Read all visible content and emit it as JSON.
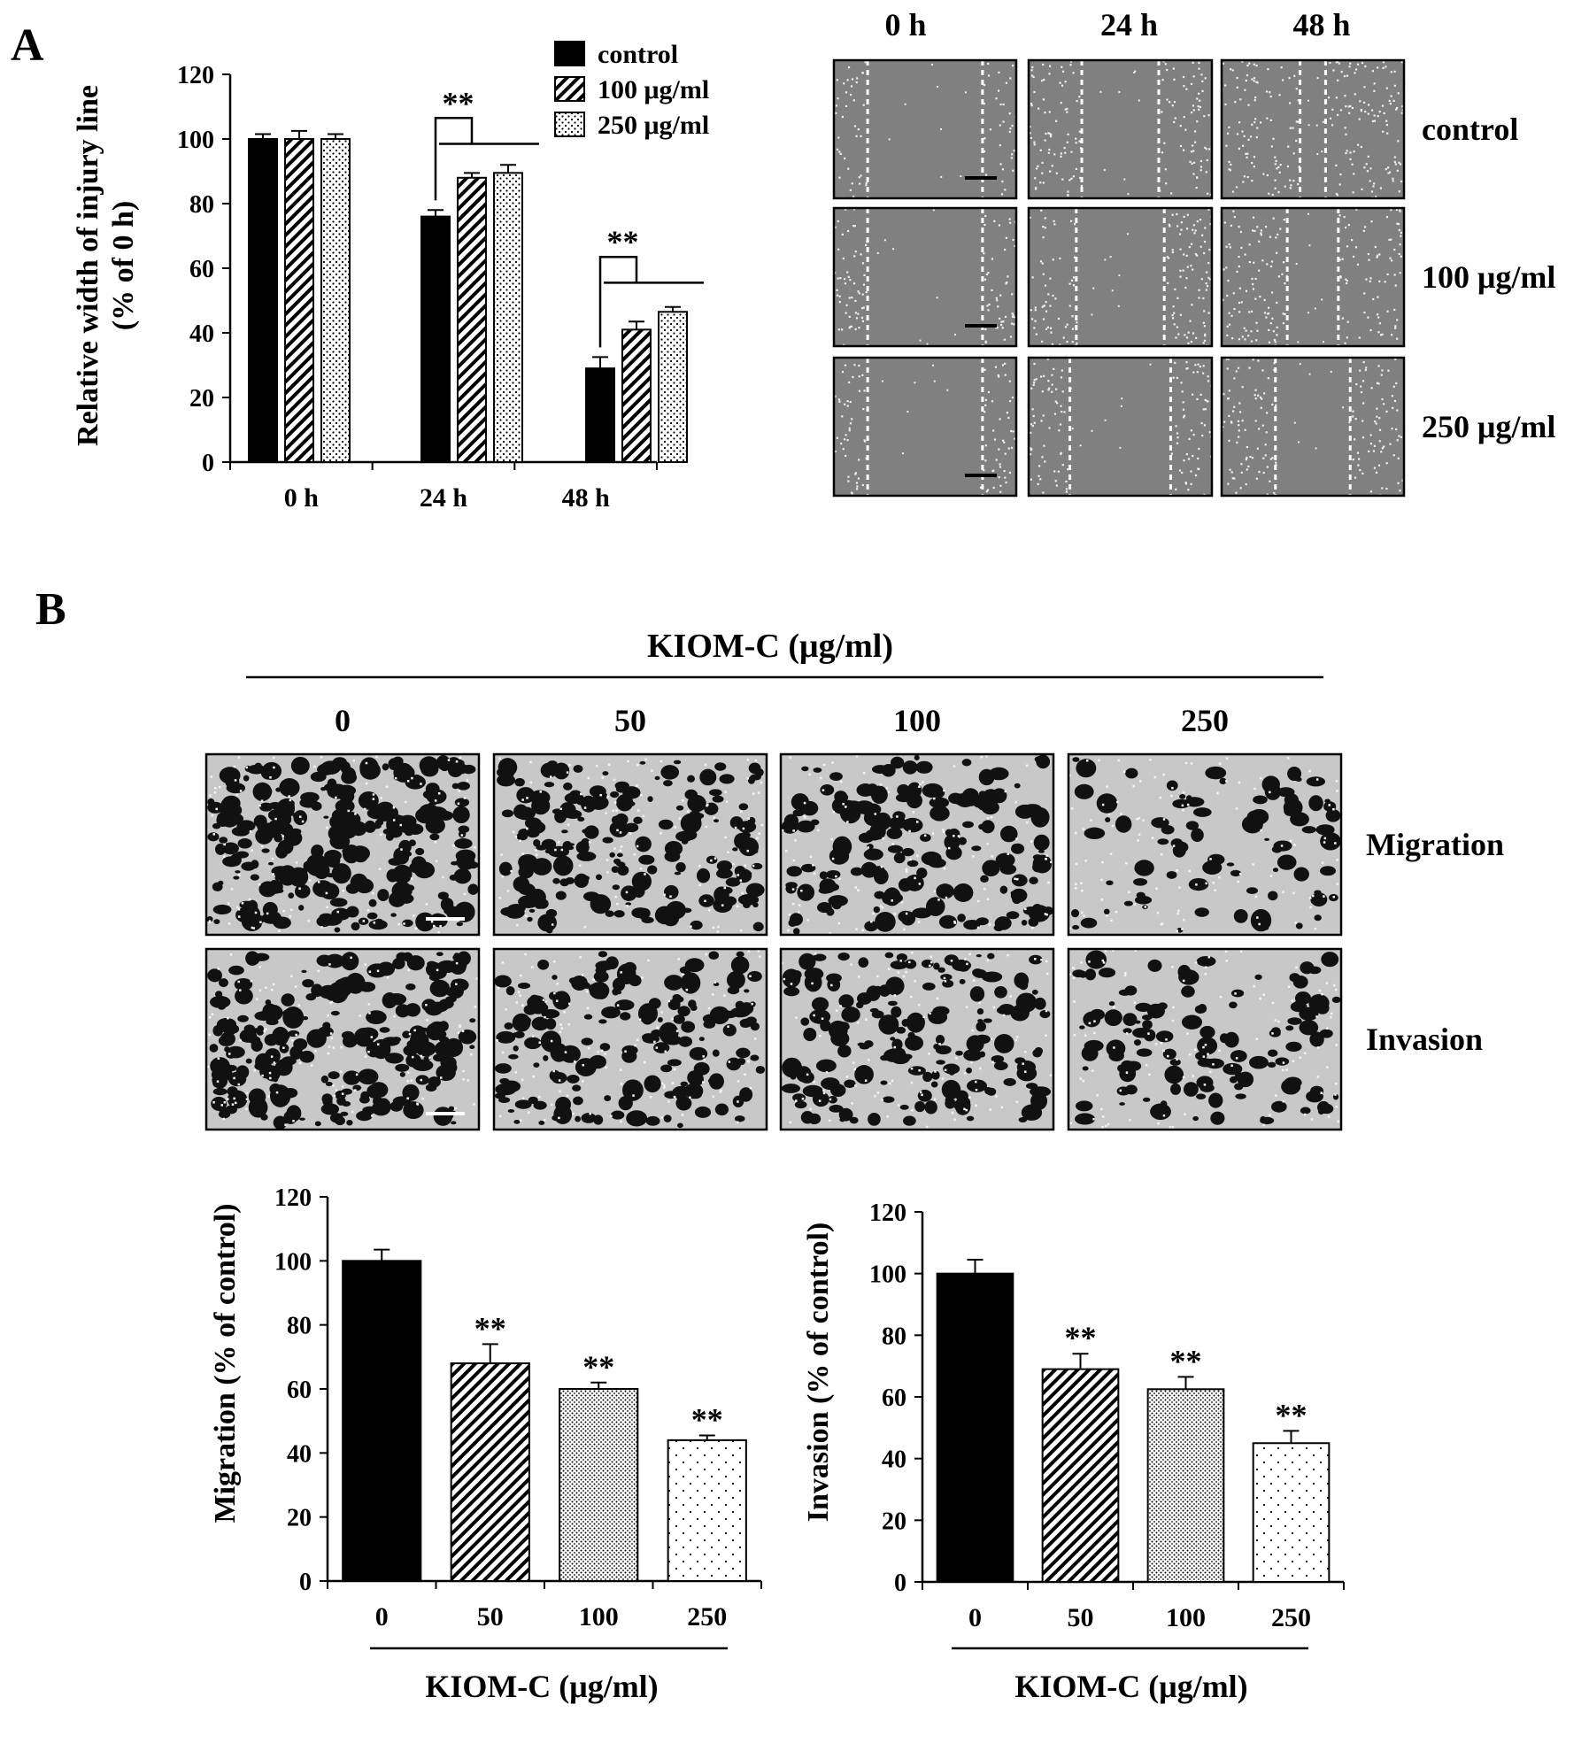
{
  "panel_labels": {
    "a": "A",
    "b": "B"
  },
  "colors": {
    "bar_fill": "#000000",
    "panel_bg": "#808080",
    "cell": "#eeeeee",
    "dark_cell": "#111111"
  },
  "micrographs_a": {
    "time_headers": [
      "0 h",
      "24 h",
      "48 h"
    ],
    "row_labels": [
      "control",
      "100 μg/ml",
      "250 μg/ml"
    ],
    "gap_fraction": [
      [
        0.63,
        0.42,
        0.14
      ],
      [
        0.63,
        0.48,
        0.28
      ],
      [
        0.63,
        0.55,
        0.41
      ]
    ]
  },
  "micrographs_b": {
    "header": "KIOM-C (μg/ml)",
    "dose_labels": [
      "0",
      "50",
      "100",
      "250"
    ],
    "row_labels": [
      "Migration",
      "Invasion"
    ],
    "cell_density": [
      [
        0.65,
        0.45,
        0.4,
        0.2
      ],
      [
        0.55,
        0.42,
        0.4,
        0.28
      ]
    ]
  },
  "chart_data": [
    {
      "type": "bar",
      "title": "",
      "xlabel": "",
      "ylabel": "Relative width of injury line",
      "ylabel2": "(% of 0 h)",
      "ylim": [
        0,
        120
      ],
      "yticks": [
        "0",
        "20",
        "40",
        "60",
        "80",
        "100",
        "120"
      ],
      "categories": [
        "0 h",
        "24 h",
        "48 h"
      ],
      "legend_position": "top-right",
      "series": [
        {
          "name": "control",
          "values": [
            100,
            76,
            29
          ],
          "errors": [
            1.5,
            2,
            3.5
          ],
          "pattern": "solid"
        },
        {
          "name": "100 μg/ml",
          "values": [
            100,
            88,
            41
          ],
          "errors": [
            2.5,
            1.5,
            2.5
          ],
          "pattern": "diagonal"
        },
        {
          "name": "250 μg/ml",
          "values": [
            100,
            89.5,
            46.5
          ],
          "errors": [
            1.5,
            2.5,
            1.5
          ],
          "pattern": "dots"
        }
      ],
      "significance": [
        {
          "category": "24 h",
          "label": "**"
        },
        {
          "category": "48 h",
          "label": "**"
        }
      ]
    },
    {
      "type": "bar",
      "title": "",
      "xlabel": "KIOM-C (μg/ml)",
      "ylabel": "Migration (% of control)",
      "ylim": [
        0,
        120
      ],
      "yticks": [
        "0",
        "20",
        "40",
        "60",
        "80",
        "100",
        "120"
      ],
      "categories": [
        "0",
        "50",
        "100",
        "250"
      ],
      "values": [
        100,
        68,
        60,
        44
      ],
      "errors": [
        3.5,
        6,
        2,
        1.5
      ],
      "patterns": [
        "solid",
        "diagonal",
        "fine-dots",
        "sparse-dots"
      ],
      "annotations": [
        "",
        "**",
        "**",
        "**"
      ]
    },
    {
      "type": "bar",
      "title": "",
      "xlabel": "KIOM-C (μg/ml)",
      "ylabel": "Invasion (% of control)",
      "ylim": [
        0,
        120
      ],
      "yticks": [
        "0",
        "20",
        "40",
        "60",
        "80",
        "100",
        "120"
      ],
      "categories": [
        "0",
        "50",
        "100",
        "250"
      ],
      "values": [
        100,
        69,
        62.5,
        45
      ],
      "errors": [
        4.5,
        5,
        4,
        4
      ],
      "patterns": [
        "solid",
        "diagonal",
        "fine-dots",
        "sparse-dots"
      ],
      "annotations": [
        "",
        "**",
        "**",
        "**"
      ]
    }
  ]
}
